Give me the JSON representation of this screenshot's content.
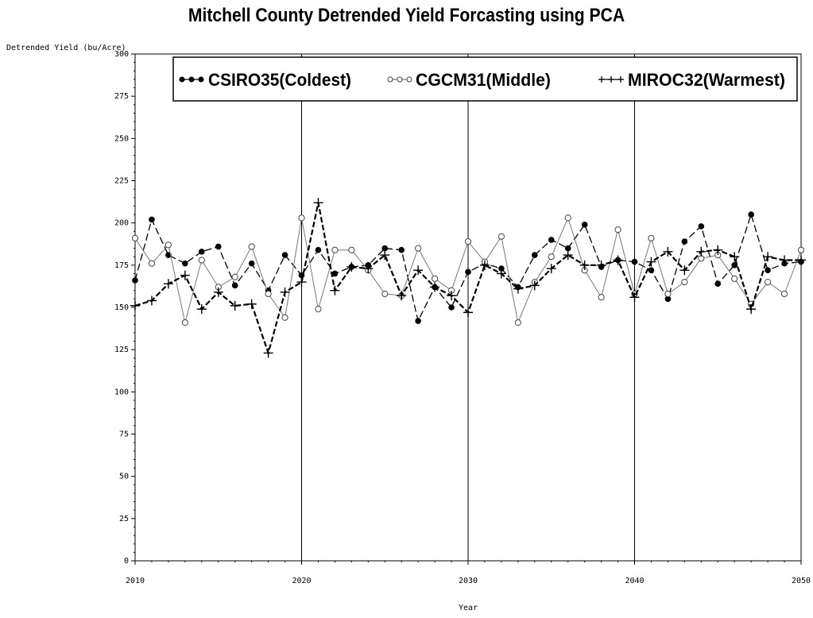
{
  "chart_data": {
    "type": "line",
    "title": "Mitchell County Detrended Yield Forcasting using PCA",
    "xlabel": "Year",
    "ylabel": "Detrended Yield (bu/Acre)",
    "xlim": [
      2010,
      2050
    ],
    "ylim": [
      0,
      300
    ],
    "xticks": [
      2010,
      2020,
      2030,
      2040,
      2050
    ],
    "yticks": [
      0,
      25,
      50,
      75,
      100,
      125,
      150,
      175,
      200,
      225,
      250,
      275,
      300
    ],
    "reference_lines_x": [
      2020,
      2030,
      2040
    ],
    "legend_position": "top",
    "x": [
      2010,
      2011,
      2012,
      2013,
      2014,
      2015,
      2016,
      2017,
      2018,
      2019,
      2020,
      2021,
      2022,
      2023,
      2024,
      2025,
      2026,
      2027,
      2028,
      2029,
      2030,
      2031,
      2032,
      2033,
      2034,
      2035,
      2036,
      2037,
      2038,
      2039,
      2040,
      2041,
      2042,
      2043,
      2044,
      2045,
      2046,
      2047,
      2048,
      2049,
      2050
    ],
    "series": [
      {
        "name": "CSIRO35(Coldest)",
        "marker": "dot",
        "color": "#000000",
        "values": [
          166,
          202,
          181,
          176,
          183,
          186,
          163,
          176,
          160,
          181,
          169,
          184,
          170,
          174,
          175,
          185,
          184,
          142,
          162,
          150,
          171,
          176,
          173,
          162,
          181,
          190,
          185,
          199,
          174,
          178,
          177,
          172,
          155,
          189,
          198,
          164,
          175,
          205,
          172,
          176,
          177
        ]
      },
      {
        "name": "CGCM31(Middle)",
        "marker": "circle",
        "color": "#555555",
        "values": [
          191,
          176,
          187,
          141,
          178,
          162,
          168,
          186,
          158,
          144,
          203,
          149,
          184,
          184,
          172,
          158,
          157,
          185,
          167,
          160,
          189,
          177,
          192,
          141,
          165,
          180,
          203,
          172,
          156,
          196,
          158,
          191,
          158,
          165,
          179,
          181,
          167,
          152,
          165,
          158,
          184
        ]
      },
      {
        "name": "MIROC32(Warmest)",
        "marker": "plus",
        "color": "#000000",
        "values": [
          151,
          154,
          164,
          169,
          149,
          159,
          151,
          152,
          123,
          159,
          165,
          212,
          160,
          174,
          173,
          181,
          157,
          172,
          162,
          157,
          147,
          175,
          170,
          161,
          163,
          173,
          181,
          175,
          175,
          178,
          156,
          177,
          183,
          172,
          183,
          184,
          180,
          149,
          180,
          178,
          178
        ]
      }
    ]
  }
}
